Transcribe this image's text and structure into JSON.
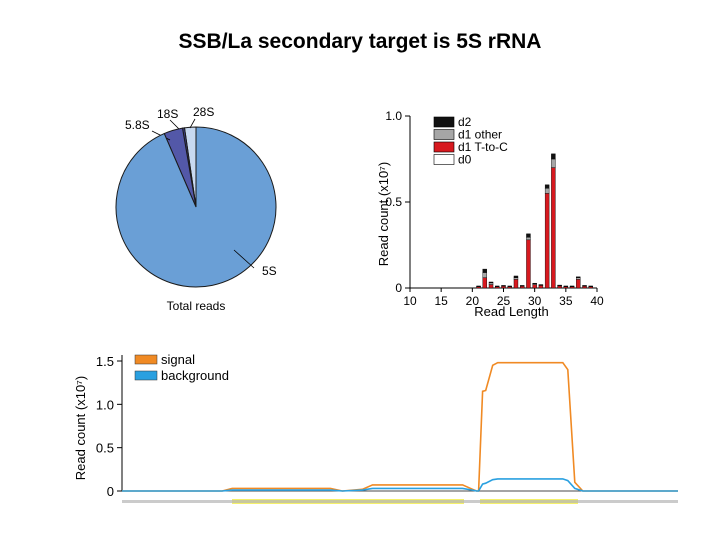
{
  "title": "SSB/La secondary target is 5S rRNA",
  "chart_data": [
    {
      "type": "pie",
      "title": "",
      "caption": "Total reads",
      "slices": [
        {
          "label": "5S",
          "value": 93.5,
          "color": "#6a9fd6"
        },
        {
          "label": "5.8S",
          "value": 3.8,
          "color": "#5358a8"
        },
        {
          "label": "18S",
          "value": 0.4,
          "color": "#3d3f8a"
        },
        {
          "label": "28S",
          "value": 2.3,
          "color": "#c8d9f0"
        }
      ]
    },
    {
      "type": "bar",
      "stacked": true,
      "xlabel": "Read Length",
      "ylabel": "Read count (x10⁷)",
      "xlim": [
        10,
        40
      ],
      "ylim": [
        0,
        1.0
      ],
      "xticks": [
        "10",
        "15",
        "20",
        "25",
        "30",
        "35",
        "40"
      ],
      "yticks": [
        "0",
        "0.5",
        "1.0"
      ],
      "legend_position": "top-left",
      "x": [
        21,
        22,
        23,
        24,
        25,
        26,
        27,
        28,
        29,
        30,
        31,
        32,
        33,
        34,
        35,
        36,
        37,
        38,
        39
      ],
      "series": [
        {
          "name": "d0",
          "color": "#ffffff",
          "values": [
            0,
            0,
            0,
            0,
            0,
            0,
            0,
            0,
            0,
            0,
            0,
            0,
            0,
            0,
            0,
            0,
            0,
            0,
            0
          ]
        },
        {
          "name": "d1 T-to-C",
          "color": "#d7191f",
          "values": [
            0.008,
            0.06,
            0.02,
            0.008,
            0.01,
            0.008,
            0.05,
            0.01,
            0.28,
            0.02,
            0.015,
            0.55,
            0.7,
            0.012,
            0.008,
            0.008,
            0.05,
            0.01,
            0.008
          ]
        },
        {
          "name": "d1 other",
          "color": "#a6a6a6",
          "values": [
            0.002,
            0.03,
            0.01,
            0.002,
            0.003,
            0.002,
            0.01,
            0.003,
            0.015,
            0.005,
            0.003,
            0.03,
            0.05,
            0.003,
            0.002,
            0.002,
            0.01,
            0.003,
            0.002
          ]
        },
        {
          "name": "d2",
          "color": "#111111",
          "values": [
            0.002,
            0.02,
            0.005,
            0.002,
            0.002,
            0.002,
            0.01,
            0.002,
            0.02,
            0.003,
            0.002,
            0.02,
            0.03,
            0.002,
            0.002,
            0.002,
            0.005,
            0.002,
            0.002
          ]
        }
      ]
    },
    {
      "type": "line",
      "xlabel": "",
      "ylabel": "Read count (x10⁷)",
      "ylim": [
        0,
        1.5
      ],
      "yticks": [
        "0",
        "0.5",
        "1.0",
        "1.5"
      ],
      "legend_position": "top-left",
      "x": [
        0,
        100,
        110,
        208,
        220,
        240,
        250,
        340,
        350,
        354,
        356,
        360,
        363,
        370,
        375,
        380,
        440,
        445,
        452,
        460,
        555
      ],
      "series": [
        {
          "name": "signal",
          "color": "#f08a24",
          "values": [
            0.0,
            0.0,
            0.03,
            0.03,
            0.0,
            0.02,
            0.07,
            0.07,
            0.02,
            0.0,
            0.0,
            1.15,
            1.16,
            1.45,
            1.48,
            1.48,
            1.48,
            1.4,
            0.1,
            0.0,
            0.0
          ]
        },
        {
          "name": "background",
          "color": "#2aa0e0",
          "values": [
            0.0,
            0.0,
            0.01,
            0.01,
            0.0,
            0.01,
            0.03,
            0.03,
            0.01,
            0.0,
            0.0,
            0.08,
            0.09,
            0.13,
            0.14,
            0.14,
            0.14,
            0.12,
            0.03,
            0.0,
            0.0
          ]
        }
      ]
    }
  ]
}
